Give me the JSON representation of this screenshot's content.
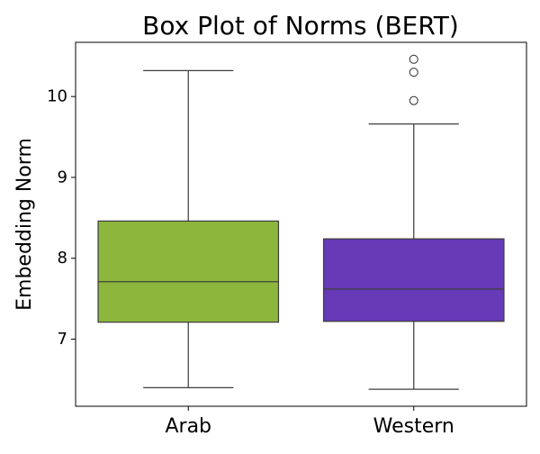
{
  "chart_data": {
    "type": "box",
    "title": "Box Plot of Norms (BERT)",
    "xlabel": "",
    "ylabel": "Embedding Norm",
    "ylim": [
      6.17,
      10.67
    ],
    "yticks": [
      7,
      8,
      9,
      10
    ],
    "grid": false,
    "categories": [
      "Arab",
      "Western"
    ],
    "boxes": [
      {
        "category": "Arab",
        "color": "#8db63c",
        "whisker_low": 6.4,
        "q1": 7.21,
        "median": 7.71,
        "q3": 8.46,
        "whisker_high": 10.32,
        "outliers": []
      },
      {
        "category": "Western",
        "color": "#673ab7",
        "whisker_low": 6.38,
        "q1": 7.22,
        "median": 7.62,
        "q3": 8.24,
        "whisker_high": 9.66,
        "outliers": [
          9.95,
          10.3,
          10.46
        ]
      }
    ]
  }
}
